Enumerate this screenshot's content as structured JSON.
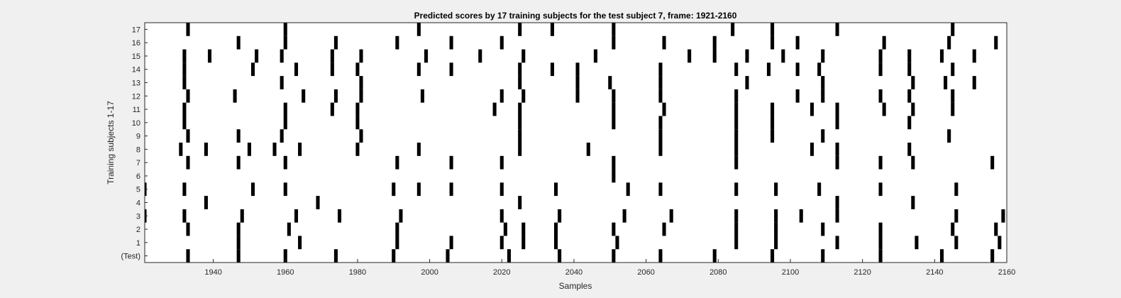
{
  "chart_data": {
    "type": "raster",
    "title": "Predicted scores by 17 training subjects for the test subject 7, frame: 1921-2160",
    "xlabel": "Samples",
    "ylabel": "Training subjects 1-17",
    "xlim": [
      1921,
      2160
    ],
    "xticks": [
      1940,
      1960,
      1980,
      2000,
      2020,
      2040,
      2060,
      2080,
      2100,
      2120,
      2140,
      2160
    ],
    "grid": false,
    "legend": "none",
    "bar_color": "#000000",
    "background_color": "#ffffff",
    "rows": [
      {
        "label": "(Test)",
        "events": [
          1933,
          1947,
          1960,
          1974,
          1990,
          2005,
          2022,
          2036,
          2051,
          2064,
          2079,
          2095,
          2109,
          2125,
          2142,
          2156
        ]
      },
      {
        "label": "1",
        "events": [
          1947,
          1964,
          1991,
          2006,
          2020,
          2026,
          2035,
          2052,
          2085,
          2096,
          2113,
          2125,
          2135,
          2146,
          2158
        ]
      },
      {
        "label": "2",
        "events": [
          1933,
          1947,
          1961,
          1991,
          2021,
          2026,
          2035,
          2051,
          2065,
          2085,
          2096,
          2109,
          2125,
          2145,
          2157
        ]
      },
      {
        "label": "3",
        "events": [
          1921,
          1932,
          1948,
          1963,
          1975,
          1992,
          2020,
          2036,
          2054,
          2067,
          2085,
          2096,
          2103,
          2113,
          2146,
          2159
        ]
      },
      {
        "label": "4",
        "events": [
          1938,
          1969,
          2025,
          2113,
          2134
        ]
      },
      {
        "label": "5",
        "events": [
          1921,
          1932,
          1951,
          1960,
          1990,
          1997,
          2006,
          2020,
          2035,
          2055,
          2064,
          2085,
          2096,
          2108,
          2125,
          2146
        ]
      },
      {
        "label": "6",
        "events": [
          2051
        ]
      },
      {
        "label": "7",
        "events": [
          1933,
          1947,
          1960,
          1991,
          2006,
          2020,
          2051,
          2085,
          2113,
          2125,
          2134,
          2156
        ]
      },
      {
        "label": "8",
        "events": [
          1931,
          1938,
          1950,
          1957,
          1964,
          1980,
          1997,
          2025,
          2044,
          2064,
          2085,
          2106,
          2113,
          2133
        ]
      },
      {
        "label": "9",
        "events": [
          1933,
          1947,
          1959,
          1981,
          2025,
          2064,
          2085,
          2095,
          2109,
          2144
        ]
      },
      {
        "label": "10",
        "events": [
          1932,
          1960,
          1980,
          2025,
          2051,
          2064,
          2085,
          2095,
          2113,
          2133
        ]
      },
      {
        "label": "11",
        "events": [
          1932,
          1960,
          1973,
          1980,
          2018,
          2025,
          2051,
          2065,
          2085,
          2095,
          2106,
          2113,
          2126,
          2134,
          2145
        ]
      },
      {
        "label": "12",
        "events": [
          1933,
          1946,
          1965,
          1974,
          1981,
          1998,
          2020,
          2026,
          2041,
          2051,
          2064,
          2085,
          2102,
          2109,
          2125,
          2133,
          2145
        ]
      },
      {
        "label": "13",
        "events": [
          1932,
          1959,
          1981,
          2025,
          2041,
          2050,
          2064,
          2088,
          2109,
          2134,
          2143,
          2151
        ]
      },
      {
        "label": "14",
        "events": [
          1932,
          1951,
          1963,
          1973,
          1980,
          1997,
          2006,
          2025,
          2034,
          2041,
          2064,
          2085,
          2094,
          2102,
          2108,
          2125,
          2133,
          2145
        ]
      },
      {
        "label": "15",
        "events": [
          1932,
          1939,
          1952,
          1959,
          1973,
          1981,
          1999,
          2014,
          2026,
          2046,
          2072,
          2079,
          2088,
          2098,
          2109,
          2125,
          2133,
          2142,
          2151
        ]
      },
      {
        "label": "16",
        "events": [
          1947,
          1960,
          1974,
          1991,
          2006,
          2020,
          2051,
          2065,
          2079,
          2095,
          2102,
          2126,
          2144,
          2157
        ]
      },
      {
        "label": "17",
        "events": [
          1933,
          1960,
          1997,
          2025,
          2034,
          2051,
          2084,
          2095,
          2113,
          2145
        ]
      }
    ]
  }
}
